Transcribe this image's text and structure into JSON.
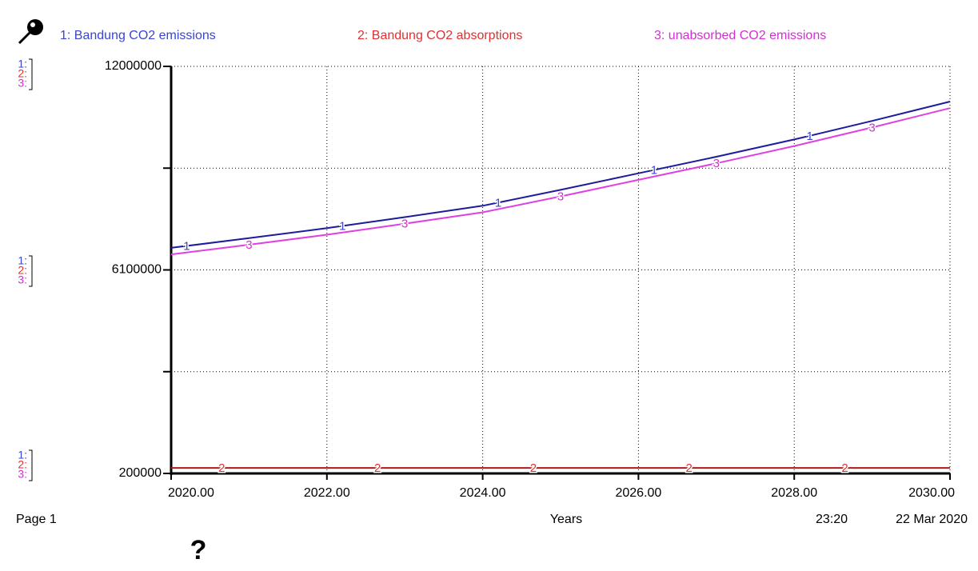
{
  "chart_data": {
    "type": "line",
    "x": [
      2020,
      2021,
      2022,
      2023,
      2024,
      2025,
      2026,
      2027,
      2028,
      2029,
      2030
    ],
    "series": [
      {
        "name": "1: Bandung CO2 emissions",
        "marker": "1",
        "color": "#1c1c9c",
        "label_color": "#3a45d0",
        "values": [
          6740000,
          7020000,
          7310000,
          7630000,
          7960000,
          8420000,
          8900000,
          9380000,
          9880000,
          10420000,
          10980000
        ]
      },
      {
        "name": "2: Bandung CO2 absorptions",
        "marker": "2",
        "color": "#b01818",
        "label_color": "#e03030",
        "values": [
          360000,
          360000,
          360000,
          360000,
          360000,
          360000,
          360000,
          360000,
          360000,
          360000,
          360000
        ]
      },
      {
        "name": "3: unabsorbed CO2 emissions",
        "marker": "3",
        "color": "#e040e0",
        "label_color": "#d030d0",
        "values": [
          6550000,
          6830000,
          7120000,
          7440000,
          7770000,
          8230000,
          8710000,
          9190000,
          9690000,
          10230000,
          10790000
        ]
      }
    ],
    "xlim": [
      2020,
      2030
    ],
    "xticks": [
      {
        "value": 2020,
        "label": "2020.00"
      },
      {
        "value": 2022,
        "label": "2022.00"
      },
      {
        "value": 2024,
        "label": "2024.00"
      },
      {
        "value": 2026,
        "label": "2026.00"
      },
      {
        "value": 2028,
        "label": "2028.00"
      },
      {
        "value": 2030,
        "label": "2030.00"
      }
    ],
    "ylim": [
      200000,
      12000000
    ],
    "yticks": [
      200000,
      6100000,
      12000000
    ],
    "minor_yticks": [
      3150000,
      9050000
    ],
    "grid": true,
    "x_label": "Years",
    "scale_keys": [
      "1:",
      "2:",
      "3:"
    ],
    "page_label": "Page 1",
    "time": "23:20",
    "date": "22 Mar 2020",
    "help_icon": "?"
  }
}
